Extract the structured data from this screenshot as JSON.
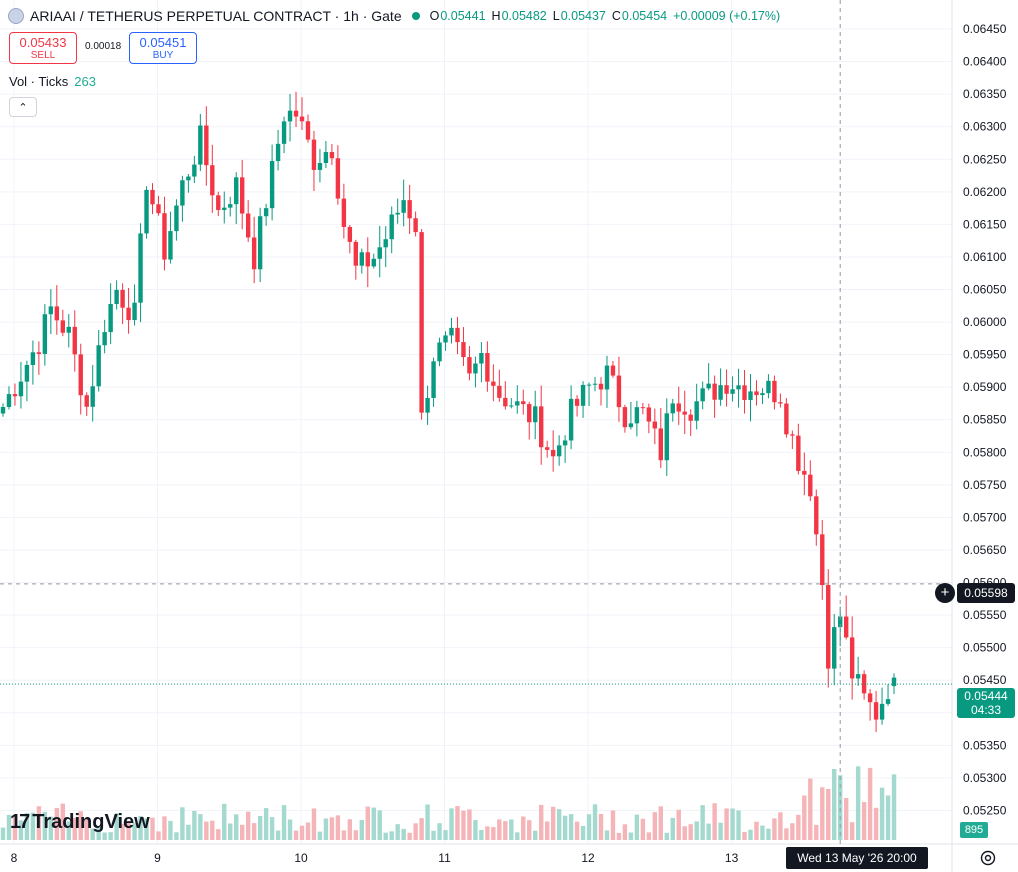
{
  "header": {
    "symbol_title": "ARIAAI / TETHERUS PERPETUAL CONTRACT · 1h · Gate",
    "ohlc": [
      {
        "k": "O",
        "v": "0.05441"
      },
      {
        "k": "H",
        "v": "0.05482"
      },
      {
        "k": "L",
        "v": "0.05437"
      },
      {
        "k": "C",
        "v": "0.05454"
      },
      {
        "k": "",
        "v": "+0.00009 (+0.17%)"
      }
    ]
  },
  "trade": {
    "sell_price": "0.05433",
    "sell_label": "SELL",
    "spread": "0.00018",
    "buy_price": "0.05451",
    "buy_label": "BUY"
  },
  "volume_indicator": {
    "label": "Vol · Ticks",
    "value": "263",
    "last_tag": "895"
  },
  "price_axis": {
    "last_price": "0.05444",
    "countdown": "04:33",
    "crosshair_price": "0.05598"
  },
  "time_axis": {
    "crosshair_label": "Wed 13 May '26   20:00"
  },
  "branding": {
    "logo_text": "TradingView"
  },
  "colors": {
    "up": "#089981",
    "down": "#f23645",
    "up_vol": "#a3d9cf",
    "down_vol": "#f5b4b7"
  },
  "chart_data": {
    "type": "candlestick",
    "interval": "1h",
    "price_ticks": [
      0.0525,
      0.053,
      0.0535,
      0.054,
      0.0545,
      0.055,
      0.0555,
      0.056,
      0.0565,
      0.057,
      0.0575,
      0.058,
      0.0585,
      0.059,
      0.0595,
      0.06,
      0.0605,
      0.061,
      0.0615,
      0.062,
      0.0625,
      0.063,
      0.0635,
      0.064,
      0.0645
    ],
    "x_ticks": [
      {
        "label": "8",
        "i": 1
      },
      {
        "label": "9",
        "i": 25
      },
      {
        "label": "10",
        "i": 49
      },
      {
        "label": "11",
        "i": 73
      },
      {
        "label": "12",
        "i": 97
      },
      {
        "label": "13",
        "i": 121
      }
    ],
    "ylim": [
      0.0522,
      0.0647
    ],
    "crosshair": {
      "price": 0.05598,
      "candle": 140
    },
    "anchors": [
      [
        0,
        0.0587
      ],
      [
        6,
        0.0597
      ],
      [
        8,
        0.0602
      ],
      [
        11,
        0.0598
      ],
      [
        14,
        0.0587
      ],
      [
        17,
        0.06
      ],
      [
        19,
        0.0605
      ],
      [
        22,
        0.0601
      ],
      [
        24,
        0.0622
      ],
      [
        27,
        0.0611
      ],
      [
        30,
        0.0621
      ],
      [
        33,
        0.0628
      ],
      [
        36,
        0.0617
      ],
      [
        39,
        0.0621
      ],
      [
        42,
        0.061
      ],
      [
        45,
        0.0623
      ],
      [
        47,
        0.0632
      ],
      [
        49,
        0.0632
      ],
      [
        52,
        0.0625
      ],
      [
        55,
        0.0627
      ],
      [
        57,
        0.0615
      ],
      [
        59,
        0.0608
      ],
      [
        62,
        0.061
      ],
      [
        64,
        0.0613
      ],
      [
        67,
        0.0619
      ],
      [
        69,
        0.0615
      ],
      [
        70,
        0.0585
      ],
      [
        72,
        0.0595
      ],
      [
        75,
        0.0597
      ],
      [
        78,
        0.0591
      ],
      [
        80,
        0.0595
      ],
      [
        83,
        0.0589
      ],
      [
        86,
        0.0587
      ],
      [
        89,
        0.0585
      ],
      [
        92,
        0.0579
      ],
      [
        95,
        0.0586
      ],
      [
        98,
        0.059
      ],
      [
        101,
        0.0592
      ],
      [
        104,
        0.0586
      ],
      [
        107,
        0.0586
      ],
      [
        110,
        0.058
      ],
      [
        112,
        0.0589
      ],
      [
        115,
        0.0587
      ],
      [
        118,
        0.0589
      ],
      [
        121,
        0.0591
      ],
      [
        124,
        0.059
      ],
      [
        127,
        0.059
      ],
      [
        130,
        0.0589
      ],
      [
        131,
        0.0585
      ],
      [
        133,
        0.0579
      ],
      [
        135,
        0.0575
      ],
      [
        137,
        0.056
      ],
      [
        138,
        0.0549
      ],
      [
        140,
        0.0555
      ],
      [
        142,
        0.0546
      ],
      [
        144,
        0.0542
      ],
      [
        146,
        0.054
      ],
      [
        148,
        0.0544
      ],
      [
        149,
        0.05454
      ]
    ],
    "volume_max": 650
  }
}
